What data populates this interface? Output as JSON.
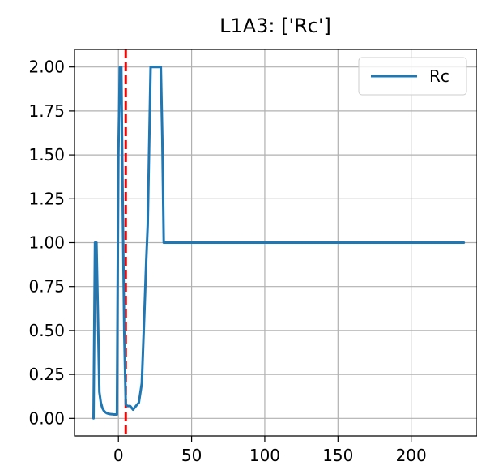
{
  "chart_data": {
    "type": "line",
    "title": "L1A3: ['Rc']",
    "xlabel": "",
    "ylabel": "",
    "xlim": [
      -30,
      245
    ],
    "ylim": [
      -0.1,
      2.1
    ],
    "xticks": [
      0,
      50,
      100,
      150,
      200
    ],
    "xtick_labels": [
      "0",
      "50",
      "100",
      "150",
      "200"
    ],
    "yticks": [
      0.0,
      0.25,
      0.5,
      0.75,
      1.0,
      1.25,
      1.5,
      1.75,
      2.0
    ],
    "ytick_labels": [
      "0.00",
      "0.25",
      "0.50",
      "0.75",
      "1.00",
      "1.25",
      "1.50",
      "1.75",
      "2.00"
    ],
    "grid": true,
    "legend": {
      "position": "top-right",
      "entries": [
        "Rc"
      ]
    },
    "vline": {
      "x": 5,
      "color": "#ff0000",
      "style": "dashed"
    },
    "series": [
      {
        "name": "Rc",
        "color": "#1f77b4",
        "x": [
          -17,
          -16,
          -15,
          -14,
          -13,
          -12,
          -11,
          -10,
          -9,
          -8,
          -7,
          -6,
          -5,
          -4,
          -3,
          -2,
          -1,
          0,
          1,
          2,
          3,
          4,
          5,
          6,
          8,
          10,
          12,
          14,
          16,
          18,
          19,
          20,
          22,
          24,
          26,
          28,
          29,
          30,
          31,
          50,
          100,
          150,
          200,
          236
        ],
        "y": [
          0.0,
          1.0,
          1.0,
          0.6,
          0.15,
          0.09,
          0.06,
          0.045,
          0.035,
          0.03,
          0.027,
          0.025,
          0.024,
          0.023,
          0.022,
          0.022,
          0.022,
          1.5,
          2.0,
          2.0,
          1.2,
          0.5,
          0.08,
          0.07,
          0.07,
          0.05,
          0.07,
          0.09,
          0.2,
          0.65,
          0.9,
          1.1,
          2.0,
          2.0,
          2.0,
          2.0,
          2.0,
          1.6,
          1.0,
          1.0,
          1.0,
          1.0,
          1.0,
          1.0
        ]
      }
    ]
  }
}
